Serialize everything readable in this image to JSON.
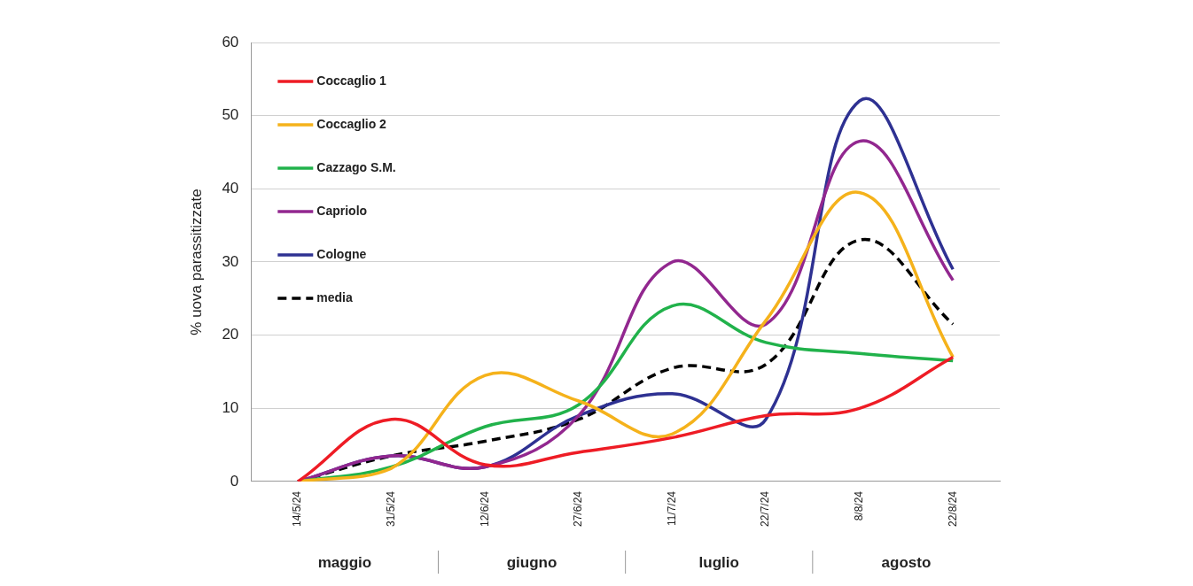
{
  "chart_data": {
    "type": "line",
    "ylabel": "% uova parassitizzate",
    "categories": [
      "14/5/24",
      "31/5/24",
      "12/6/24",
      "27/6/24",
      "11/7/24",
      "22/7/24",
      "8/8/24",
      "22/8/24"
    ],
    "series": [
      {
        "name": "Coccaglio 1",
        "color": "#ee1c25",
        "values": [
          0,
          8.5,
          2.3,
          4,
          6,
          9,
          10,
          17
        ]
      },
      {
        "name": "Coccaglio 2",
        "color": "#f5b21b",
        "values": [
          0,
          1.8,
          14.5,
          11,
          6.5,
          22,
          39.5,
          17
        ]
      },
      {
        "name": "Cazzago S.M.",
        "color": "#21b24b",
        "values": [
          0,
          2,
          7.5,
          10.5,
          24,
          19,
          17.5,
          16.5
        ]
      },
      {
        "name": "Capriolo",
        "color": "#92278f",
        "values": [
          0,
          3.5,
          2,
          9,
          30,
          21.5,
          46.5,
          27.5
        ]
      },
      {
        "name": "Cologne",
        "color": "#2e3192",
        "values": [
          0,
          3.5,
          2,
          9,
          12,
          8.5,
          52,
          29
        ]
      },
      {
        "name": "media",
        "color": "#000000",
        "values": [
          0,
          3.5,
          5.5,
          8.5,
          15.5,
          16,
          33,
          21.5
        ],
        "line_style": "dashed"
      }
    ],
    "ylim": [
      0,
      60
    ],
    "yticks": [
      0,
      10,
      20,
      30,
      40,
      50,
      60
    ],
    "grid": "y",
    "legend": "top left",
    "marker": "none",
    "annotations": [
      "maggio",
      "giugno",
      "luglio",
      "agosto"
    ]
  }
}
